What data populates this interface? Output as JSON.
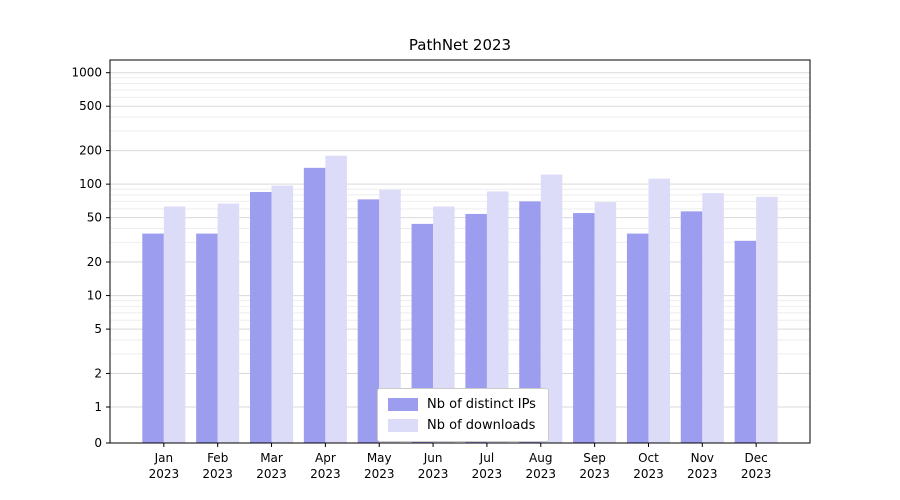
{
  "chart_data": {
    "type": "bar",
    "title": "PathNet 2023",
    "xlabel": "",
    "ylabel": "",
    "yscale": "symlog",
    "grid": true,
    "legend_position": "lower center",
    "ylim": [
      0,
      1300
    ],
    "yticks": [
      0,
      1,
      2,
      5,
      10,
      20,
      50,
      100,
      200,
      500,
      1000
    ],
    "yticks_minor": [
      3,
      4,
      6,
      7,
      8,
      9,
      30,
      40,
      60,
      70,
      80,
      90,
      300,
      400,
      600,
      700,
      800,
      900
    ],
    "categories": [
      "Jan 2023",
      "Feb 2023",
      "Mar 2023",
      "Apr 2023",
      "May 2023",
      "Jun 2023",
      "Jul 2023",
      "Aug 2023",
      "Sep 2023",
      "Oct 2023",
      "Nov 2023",
      "Dec 2023"
    ],
    "series": [
      {
        "name": "Nb of distinct IPs",
        "color": "#9d9df0",
        "values": [
          36,
          36,
          85,
          140,
          73,
          44,
          54,
          70,
          55,
          36,
          57,
          31
        ]
      },
      {
        "name": "Nb of downloads",
        "color": "#dddcf8",
        "values": [
          63,
          67,
          97,
          180,
          89,
          63,
          86,
          122,
          69,
          112,
          83,
          77
        ]
      }
    ]
  }
}
